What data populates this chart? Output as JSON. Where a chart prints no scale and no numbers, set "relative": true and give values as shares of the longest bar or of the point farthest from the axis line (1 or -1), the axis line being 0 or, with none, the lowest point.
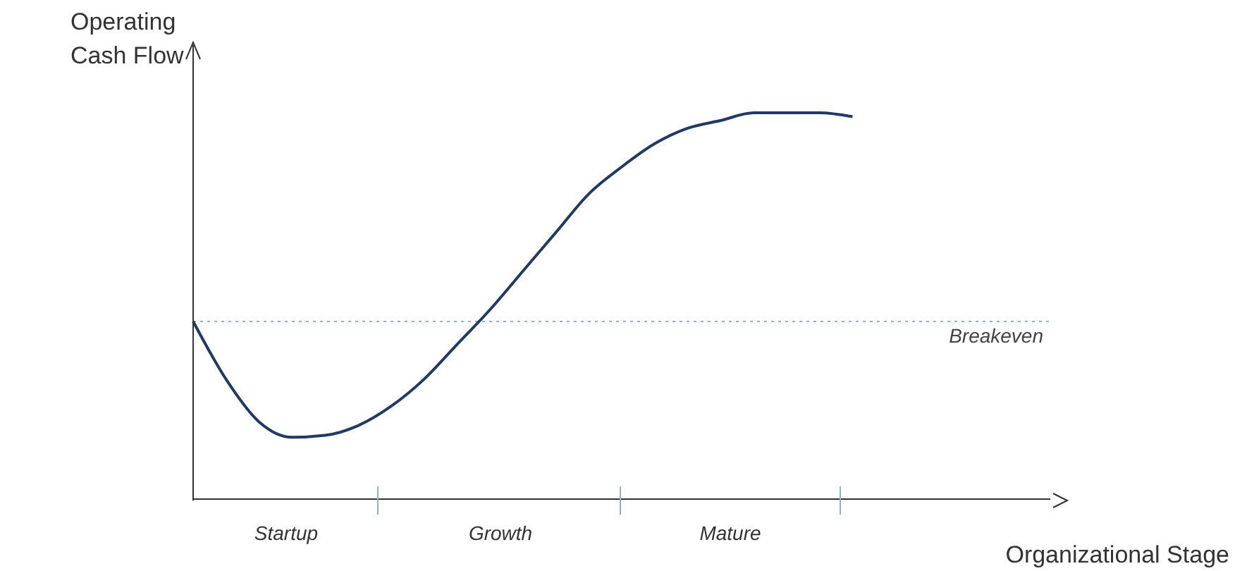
{
  "chart_data": {
    "type": "line",
    "relative": true,
    "xlabel": "Organizational Stage",
    "ylabel": "Operating Cash Flow",
    "categories": [
      null,
      null,
      null,
      null,
      null,
      null,
      null,
      null,
      null,
      null,
      null,
      null,
      null,
      null,
      null,
      null,
      null,
      null,
      null,
      null,
      null,
      null,
      null,
      null,
      null,
      null,
      null
    ],
    "series": [
      {
        "color": "#1f3a68",
        "values": [
          0.46,
          0.31,
          0.2,
          0.16,
          0.165,
          0.19,
          0.24,
          0.31,
          0.4,
          0.49,
          0.59,
          0.69,
          0.79,
          0.86,
          0.92,
          0.96,
          0.98,
          1.0,
          1.0,
          1.0,
          0.99,
          null,
          null,
          null,
          null,
          null,
          null
        ]
      }
    ],
    "ref_lines": [
      {
        "axis": "y",
        "value": 0.46,
        "label": "Breakeven",
        "color": "#8fb0d9",
        "line_style": "dotted"
      }
    ],
    "annotations": [
      "Startup",
      "Growth",
      "Mature"
    ],
    "marker": "none",
    "line_style": "solid"
  }
}
